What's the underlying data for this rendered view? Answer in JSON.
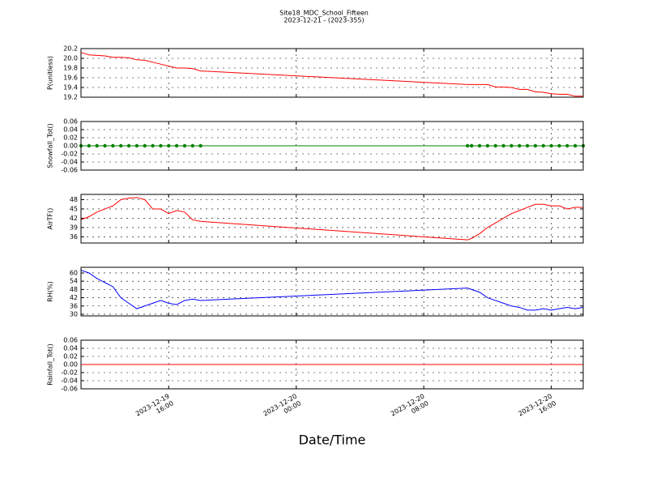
{
  "chart_data": [
    {
      "type": "line",
      "title": "Site18_MDC_School_Fifteen",
      "subtitle": "2023-12-21 - (2023-355)",
      "ylabel": "P(unitless)",
      "x": [
        "2023-12-19 10:30",
        "2023-12-19 11:00",
        "2023-12-19 11:30",
        "2023-12-19 12:00",
        "2023-12-19 12:30",
        "2023-12-19 13:00",
        "2023-12-19 13:30",
        "2023-12-19 14:00",
        "2023-12-19 14:30",
        "2023-12-19 15:00",
        "2023-12-19 15:30",
        "2023-12-19 16:00",
        "2023-12-19 16:30",
        "2023-12-19 17:00",
        "2023-12-19 17:30",
        "2023-12-19 18:00",
        "2023-12-20 10:45",
        "2023-12-20 11:00",
        "2023-12-20 11:30",
        "2023-12-20 12:00",
        "2023-12-20 12:30",
        "2023-12-20 13:00",
        "2023-12-20 13:30",
        "2023-12-20 14:00",
        "2023-12-20 14:30",
        "2023-12-20 15:00",
        "2023-12-20 15:30",
        "2023-12-20 16:00",
        "2023-12-20 16:30",
        "2023-12-20 17:00",
        "2023-12-20 17:30",
        "2023-12-20 18:00"
      ],
      "series": [
        {
          "color": "#ff0000",
          "values": [
            20.12,
            20.07,
            20.06,
            20.05,
            20.02,
            20.02,
            20.01,
            19.97,
            19.96,
            19.92,
            19.88,
            19.84,
            19.8,
            19.8,
            19.79,
            19.74,
            19.46,
            19.46,
            19.46,
            19.46,
            19.41,
            19.41,
            19.4,
            19.36,
            19.36,
            19.31,
            19.3,
            19.27,
            19.26,
            19.26,
            19.22,
            19.22
          ]
        }
      ],
      "xlim": [
        "2023-12-19 10:30",
        "2023-12-20 18:00"
      ],
      "xticks": [
        "2023-12-19 16:00",
        "2023-12-20 00:00",
        "2023-12-20 08:00",
        "2023-12-20 16:00"
      ],
      "ylim": [
        19.2,
        20.2
      ],
      "yticks": [
        20.2,
        {
          "value": 20.0,
          "label": "20.0"
        },
        19.8,
        19.6,
        19.4,
        19.2
      ],
      "grid": true
    },
    {
      "type": "line",
      "ylabel": "Snowfall_Tot()",
      "x": [
        "2023-12-19 10:30",
        "2023-12-19 11:00",
        "2023-12-19 11:30",
        "2023-12-19 12:00",
        "2023-12-19 12:30",
        "2023-12-19 13:00",
        "2023-12-19 13:30",
        "2023-12-19 14:00",
        "2023-12-19 14:30",
        "2023-12-19 15:00",
        "2023-12-19 15:30",
        "2023-12-19 16:00",
        "2023-12-19 16:30",
        "2023-12-19 17:00",
        "2023-12-19 17:30",
        "2023-12-19 18:00",
        "2023-12-20 10:45",
        "2023-12-20 11:00",
        "2023-12-20 11:30",
        "2023-12-20 12:00",
        "2023-12-20 12:30",
        "2023-12-20 13:00",
        "2023-12-20 13:30",
        "2023-12-20 14:00",
        "2023-12-20 14:30",
        "2023-12-20 15:00",
        "2023-12-20 15:30",
        "2023-12-20 16:00",
        "2023-12-20 16:30",
        "2023-12-20 17:00",
        "2023-12-20 17:30",
        "2023-12-20 18:00"
      ],
      "series": [
        {
          "color": "#008000",
          "marker": "o",
          "values": [
            0,
            0,
            0,
            0,
            0,
            0,
            0,
            0,
            0,
            0,
            0,
            0,
            0,
            0,
            0,
            0,
            0,
            0,
            0,
            0,
            0,
            0,
            0,
            0,
            0,
            0,
            0,
            0,
            0,
            0,
            0,
            0
          ]
        }
      ],
      "xlim": [
        "2023-12-19 10:30",
        "2023-12-20 18:00"
      ],
      "xticks": [
        "2023-12-19 16:00",
        "2023-12-20 00:00",
        "2023-12-20 08:00",
        "2023-12-20 16:00"
      ],
      "ylim": [
        -0.06,
        0.06
      ],
      "yticks": [
        0.06,
        0.04,
        0.02,
        {
          "value": 0,
          "label": "0.00"
        },
        -0.02,
        -0.04,
        -0.06
      ],
      "grid": true
    },
    {
      "type": "line",
      "ylabel": "AirTF()",
      "x": [
        "2023-12-19 10:30",
        "2023-12-19 11:00",
        "2023-12-19 11:30",
        "2023-12-19 12:00",
        "2023-12-19 12:30",
        "2023-12-19 13:00",
        "2023-12-19 13:30",
        "2023-12-19 14:00",
        "2023-12-19 14:30",
        "2023-12-19 15:00",
        "2023-12-19 15:30",
        "2023-12-19 16:00",
        "2023-12-19 16:30",
        "2023-12-19 17:00",
        "2023-12-19 17:30",
        "2023-12-19 18:00",
        "2023-12-20 10:45",
        "2023-12-20 11:00",
        "2023-12-20 11:30",
        "2023-12-20 12:00",
        "2023-12-20 12:30",
        "2023-12-20 13:00",
        "2023-12-20 13:30",
        "2023-12-20 14:00",
        "2023-12-20 14:30",
        "2023-12-20 15:00",
        "2023-12-20 15:30",
        "2023-12-20 16:00",
        "2023-12-20 16:30",
        "2023-12-20 17:00",
        "2023-12-20 17:30",
        "2023-12-20 18:00"
      ],
      "series": [
        {
          "color": "#ff0000",
          "values": [
            41.5,
            42.5,
            44,
            45,
            46,
            48,
            48.5,
            48.7,
            48,
            45,
            45,
            43.5,
            44.5,
            44,
            41.5,
            41,
            35,
            35.5,
            37,
            39,
            40.5,
            42,
            43.5,
            44.5,
            45.5,
            46.5,
            46.5,
            46,
            46,
            45,
            45.5,
            45.5
          ]
        }
      ],
      "xlim": [
        "2023-12-19 10:30",
        "2023-12-20 18:00"
      ],
      "xticks": [
        "2023-12-19 16:00",
        "2023-12-20 00:00",
        "2023-12-20 08:00",
        "2023-12-20 16:00"
      ],
      "ylim": [
        34,
        49.7
      ],
      "yticks": [
        48,
        45,
        42,
        39,
        36
      ],
      "grid": true
    },
    {
      "type": "line",
      "ylabel": "RH(%)",
      "x": [
        "2023-12-19 10:30",
        "2023-12-19 11:00",
        "2023-12-19 11:30",
        "2023-12-19 12:00",
        "2023-12-19 12:30",
        "2023-12-19 13:00",
        "2023-12-19 13:30",
        "2023-12-19 14:00",
        "2023-12-19 14:30",
        "2023-12-19 15:00",
        "2023-12-19 15:30",
        "2023-12-19 16:00",
        "2023-12-19 16:30",
        "2023-12-19 17:00",
        "2023-12-19 17:30",
        "2023-12-19 18:00",
        "2023-12-20 10:45",
        "2023-12-20 11:00",
        "2023-12-20 11:30",
        "2023-12-20 12:00",
        "2023-12-20 12:30",
        "2023-12-20 13:00",
        "2023-12-20 13:30",
        "2023-12-20 14:00",
        "2023-12-20 14:30",
        "2023-12-20 15:00",
        "2023-12-20 15:30",
        "2023-12-20 16:00",
        "2023-12-20 16:30",
        "2023-12-20 17:00",
        "2023-12-20 17:30",
        "2023-12-20 18:00"
      ],
      "series": [
        {
          "color": "#0000ff",
          "values": [
            62,
            60,
            56,
            53,
            50,
            42,
            38,
            34,
            36,
            38,
            40,
            38,
            37,
            40,
            41,
            40,
            49,
            48,
            46,
            42,
            40,
            38,
            36,
            35,
            33,
            33,
            34,
            33,
            34,
            35,
            34,
            35
          ]
        }
      ],
      "xlim": [
        "2023-12-19 10:30",
        "2023-12-20 18:00"
      ],
      "xticks": [
        "2023-12-19 16:00",
        "2023-12-20 00:00",
        "2023-12-20 08:00",
        "2023-12-20 16:00"
      ],
      "ylim": [
        28.8,
        64.1
      ],
      "yticks": [
        60,
        54,
        48,
        42,
        36,
        30
      ],
      "grid": true
    },
    {
      "type": "line",
      "ylabel": "Rainfall_Tot()",
      "xlabel": "Date/Time",
      "x": [
        "2023-12-19 10:30",
        "2023-12-19 11:00",
        "2023-12-19 11:30",
        "2023-12-19 12:00",
        "2023-12-19 12:30",
        "2023-12-19 13:00",
        "2023-12-19 13:30",
        "2023-12-19 14:00",
        "2023-12-19 14:30",
        "2023-12-19 15:00",
        "2023-12-19 15:30",
        "2023-12-19 16:00",
        "2023-12-19 16:30",
        "2023-12-19 17:00",
        "2023-12-19 17:30",
        "2023-12-19 18:00",
        "2023-12-20 10:45",
        "2023-12-20 11:00",
        "2023-12-20 11:30",
        "2023-12-20 12:00",
        "2023-12-20 12:30",
        "2023-12-20 13:00",
        "2023-12-20 13:30",
        "2023-12-20 14:00",
        "2023-12-20 14:30",
        "2023-12-20 15:00",
        "2023-12-20 15:30",
        "2023-12-20 16:00",
        "2023-12-20 16:30",
        "2023-12-20 17:00",
        "2023-12-20 17:30",
        "2023-12-20 18:00"
      ],
      "series": [
        {
          "color": "#ff0000",
          "values": [
            0,
            0,
            0,
            0,
            0,
            0,
            0,
            0,
            0,
            0,
            0,
            0,
            0,
            0,
            0,
            0,
            0,
            0,
            0,
            0,
            0,
            0,
            0,
            0,
            0,
            0,
            0,
            0,
            0,
            0,
            0,
            0
          ]
        }
      ],
      "xlim": [
        "2023-12-19 10:30",
        "2023-12-20 18:00"
      ],
      "xticks": [
        "2023-12-19 16:00",
        "2023-12-20 00:00",
        "2023-12-20 08:00",
        "2023-12-20 16:00"
      ],
      "ylim": [
        -0.06,
        0.06
      ],
      "yticks": [
        0.06,
        0.04,
        0.02,
        {
          "value": 0,
          "label": "0.00"
        },
        -0.02,
        -0.04,
        -0.06
      ],
      "grid": true,
      "show_xtick_labels": true
    }
  ]
}
